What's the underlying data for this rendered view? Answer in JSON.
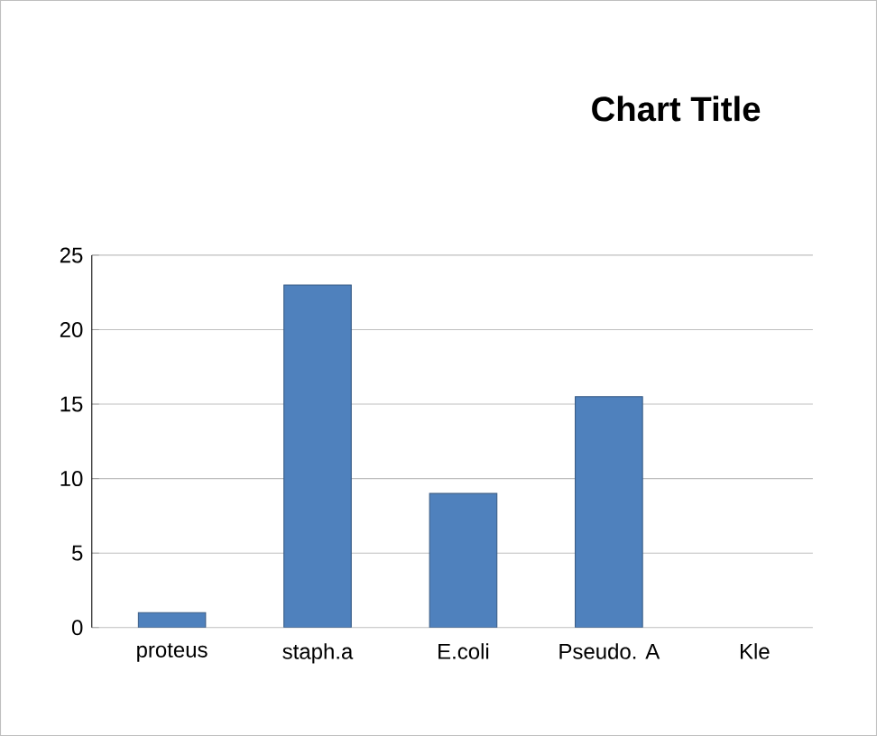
{
  "chart_data": {
    "type": "bar",
    "title": "Chart Title",
    "categories": [
      "proteus",
      "staph.a",
      "E.coli",
      "Pseudo. A",
      "Kle"
    ],
    "values": [
      1,
      23,
      9,
      15.5,
      null
    ],
    "color": "#4f81bd",
    "ylim": [
      0,
      25
    ],
    "yticks": [
      0,
      5,
      10,
      15,
      20,
      25
    ],
    "grid": "y"
  }
}
